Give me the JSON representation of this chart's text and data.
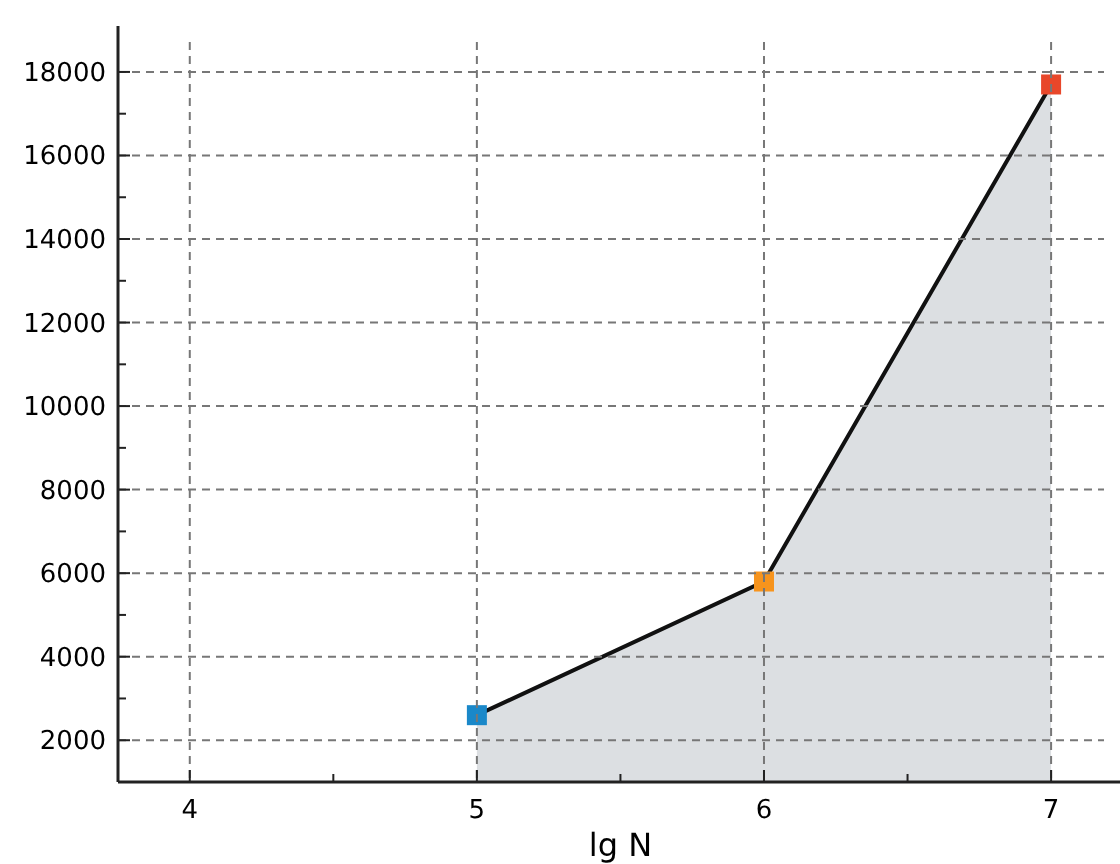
{
  "chart_data": {
    "type": "area",
    "xlabel": "lg N",
    "x": [
      5,
      6,
      7
    ],
    "series": [
      {
        "values": [
          2600,
          5800,
          17700
        ],
        "color": "#dcdfe2",
        "colors": [
          "#1a88c9",
          "#f7941d",
          "#e8472a"
        ]
      }
    ],
    "xlim": [
      3.75,
      7.24
    ],
    "ylim": [
      1000,
      19100
    ],
    "xticks": [
      4,
      {
        "value": 4.5,
        "label": null
      },
      5,
      {
        "value": 5.5,
        "label": null
      },
      6,
      {
        "value": 6.5,
        "label": null
      },
      7
    ],
    "yticks": [
      2000,
      {
        "value": 3000,
        "label": null
      },
      4000,
      {
        "value": 5000,
        "label": null
      },
      6000,
      {
        "value": 7000,
        "label": null
      },
      8000,
      {
        "value": 9000,
        "label": null
      },
      10000,
      {
        "value": 11000,
        "label": null
      },
      12000,
      {
        "value": 13000,
        "label": null
      },
      14000,
      {
        "value": 15000,
        "label": null
      },
      16000,
      {
        "value": 17000,
        "label": null
      },
      18000
    ],
    "grid": true,
    "marker": "square"
  }
}
